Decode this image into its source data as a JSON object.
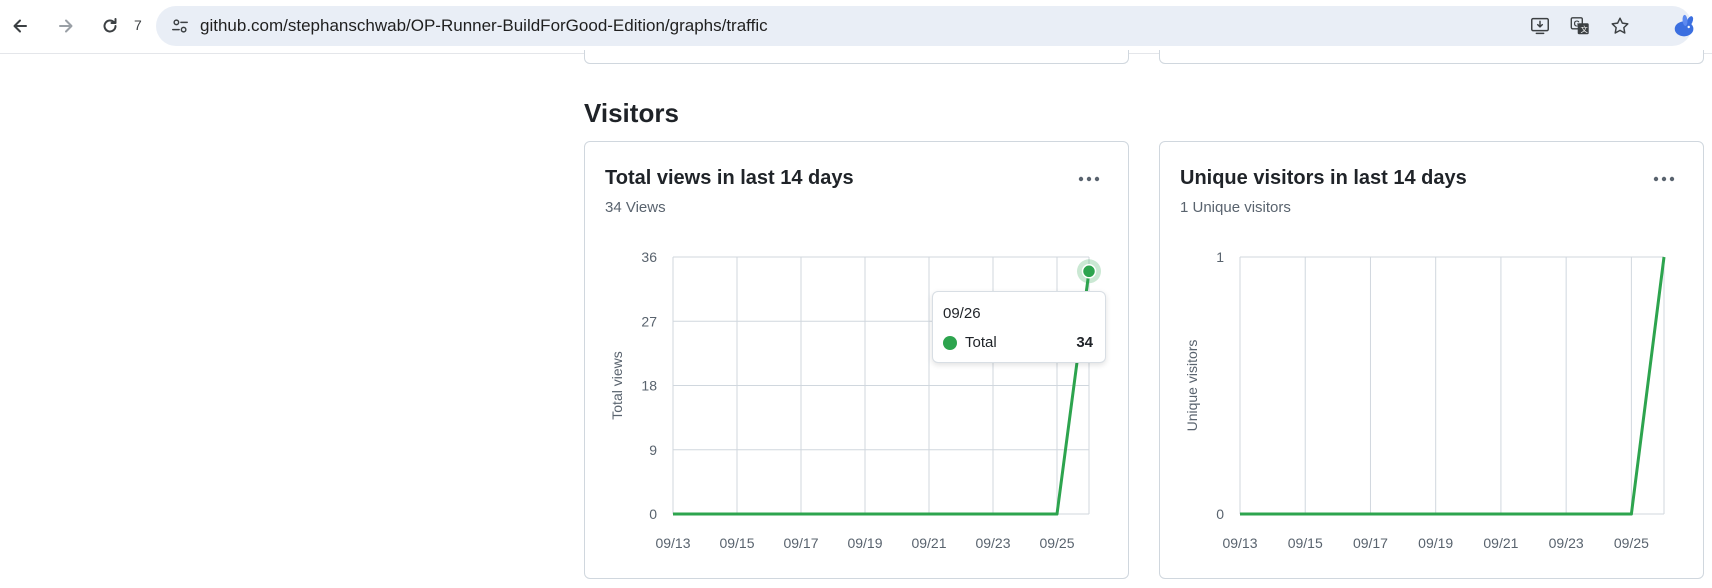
{
  "browser": {
    "reload_count": "7",
    "url": "github.com/stephanschwab/OP-Runner-BuildForGood-Edition/graphs/traffic",
    "icons": [
      "back-arrow-icon",
      "forward-arrow-icon",
      "reload-icon",
      "site-info-icon",
      "install-app-icon",
      "translate-icon",
      "bookmark-star-icon",
      "profile-icon"
    ]
  },
  "section": {
    "title": "Visitors"
  },
  "cards": [
    {
      "title": "Total views in last 14 days",
      "subtitle": "34 Views",
      "menu_icon": "kebab-menu-icon",
      "tooltip": {
        "date": "09/26",
        "label": "Total",
        "value": "34"
      }
    },
    {
      "title": "Unique visitors in last 14 days",
      "subtitle": "1 Unique visitors",
      "menu_icon": "kebab-menu-icon"
    }
  ],
  "colors": {
    "line": "#2da44e",
    "grid": "#d0d7de",
    "text_muted": "#59636e"
  },
  "chart_data": [
    {
      "type": "line",
      "title": "Total views in last 14 days",
      "ylabel": "Total views",
      "xlabel": "",
      "x": [
        "09/13",
        "09/14",
        "09/15",
        "09/16",
        "09/17",
        "09/18",
        "09/19",
        "09/20",
        "09/21",
        "09/22",
        "09/23",
        "09/24",
        "09/25",
        "09/26"
      ],
      "x_tick_labels": [
        "09/13",
        "09/15",
        "09/17",
        "09/19",
        "09/21",
        "09/23",
        "09/25"
      ],
      "y_ticks": [
        0,
        9,
        18,
        27,
        36
      ],
      "ylim": [
        0,
        36
      ],
      "grid": true,
      "series": [
        {
          "name": "Total",
          "values": [
            0,
            0,
            0,
            0,
            0,
            0,
            0,
            0,
            0,
            0,
            0,
            0,
            0,
            34
          ]
        }
      ],
      "highlight": {
        "x": "09/26",
        "value": 34
      }
    },
    {
      "type": "line",
      "title": "Unique visitors in last 14 days",
      "ylabel": "Unique visitors",
      "xlabel": "",
      "x": [
        "09/13",
        "09/14",
        "09/15",
        "09/16",
        "09/17",
        "09/18",
        "09/19",
        "09/20",
        "09/21",
        "09/22",
        "09/23",
        "09/24",
        "09/25",
        "09/26"
      ],
      "x_tick_labels": [
        "09/13",
        "09/15",
        "09/17",
        "09/19",
        "09/21",
        "09/23",
        "09/25"
      ],
      "y_ticks": [
        0,
        1
      ],
      "ylim": [
        0,
        1
      ],
      "grid": true,
      "series": [
        {
          "values": [
            0,
            0,
            0,
            0,
            0,
            0,
            0,
            0,
            0,
            0,
            0,
            0,
            0,
            1
          ]
        }
      ]
    }
  ]
}
